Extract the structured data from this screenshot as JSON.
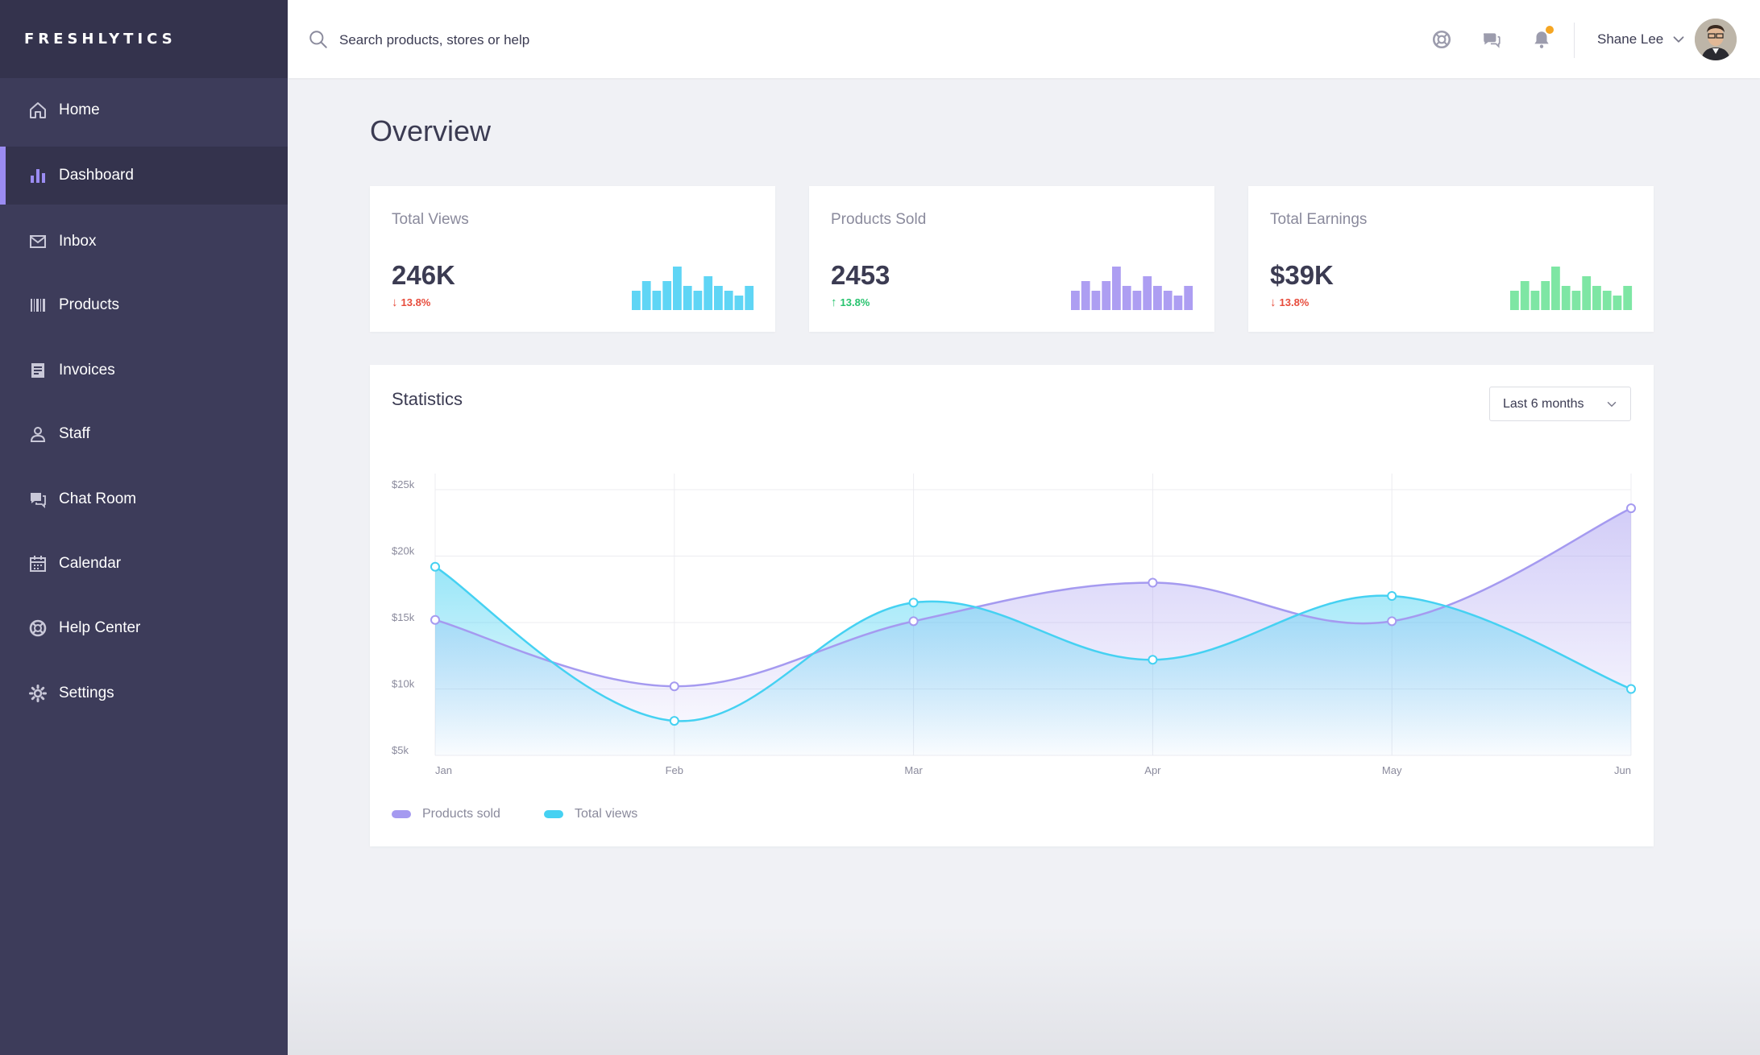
{
  "brand": "FRESHLYTICS",
  "nav": [
    {
      "label": "Home",
      "icon": "home-icon"
    },
    {
      "label": "Dashboard",
      "icon": "bar-chart-icon",
      "active": true
    },
    {
      "label": "Inbox",
      "icon": "mail-icon"
    },
    {
      "label": "Products",
      "icon": "barcode-icon"
    },
    {
      "label": "Invoices",
      "icon": "invoice-icon"
    },
    {
      "label": "Staff",
      "icon": "user-icon"
    },
    {
      "label": "Chat Room",
      "icon": "chat-icon"
    },
    {
      "label": "Calendar",
      "icon": "calendar-icon"
    },
    {
      "label": "Help Center",
      "icon": "lifebuoy-icon"
    },
    {
      "label": "Settings",
      "icon": "gear-icon"
    }
  ],
  "header": {
    "search_placeholder": "Search products, stores or help",
    "user_name": "Shane Lee",
    "icons": [
      "help-icon",
      "chat-bubbles-icon",
      "bell-icon",
      "chevron-down-icon"
    ],
    "notification_color": "#f5a623"
  },
  "page_title": "Overview",
  "stats": [
    {
      "label": "Total Views",
      "value": "246K",
      "change": "13.8%",
      "direction": "down",
      "color": "#5fd5f5"
    },
    {
      "label": "Products Sold",
      "value": "2453",
      "change": "13.8%",
      "direction": "up",
      "color": "#ad9ef2"
    },
    {
      "label": "Total Earnings",
      "value": "$39K",
      "change": "13.8%",
      "direction": "down",
      "color": "#7ee6a4"
    }
  ],
  "mini_bar_values": [
    4,
    6,
    4,
    6,
    9,
    5,
    4,
    7,
    5,
    4,
    3,
    5
  ],
  "colors": {
    "accent": "#9b8cf2",
    "down": "#e74c3c",
    "up": "#27c36e",
    "sidebar": "#3d3c5a",
    "sidebar_dark": "#34334d"
  },
  "statistics": {
    "title": "Statistics",
    "range": "Last 6 months",
    "legend": [
      {
        "label": "Products sold",
        "color": "#a59af0"
      },
      {
        "label": "Total views",
        "color": "#45d1f2"
      }
    ]
  },
  "chart_data": {
    "type": "area",
    "x": [
      "Jan",
      "Feb",
      "Mar",
      "Apr",
      "May",
      "Jun"
    ],
    "y_ticks": [
      "$5k",
      "$10k",
      "$15k",
      "$20k",
      "$25k"
    ],
    "ylim": [
      5000,
      25000
    ],
    "grid": true,
    "legend_position": "bottom-left",
    "series": [
      {
        "name": "Products sold",
        "values": [
          15200,
          10200,
          15100,
          18000,
          15100,
          23600
        ]
      },
      {
        "name": "Total views",
        "values": [
          19200,
          7600,
          16500,
          12200,
          17000,
          10000
        ]
      }
    ]
  }
}
